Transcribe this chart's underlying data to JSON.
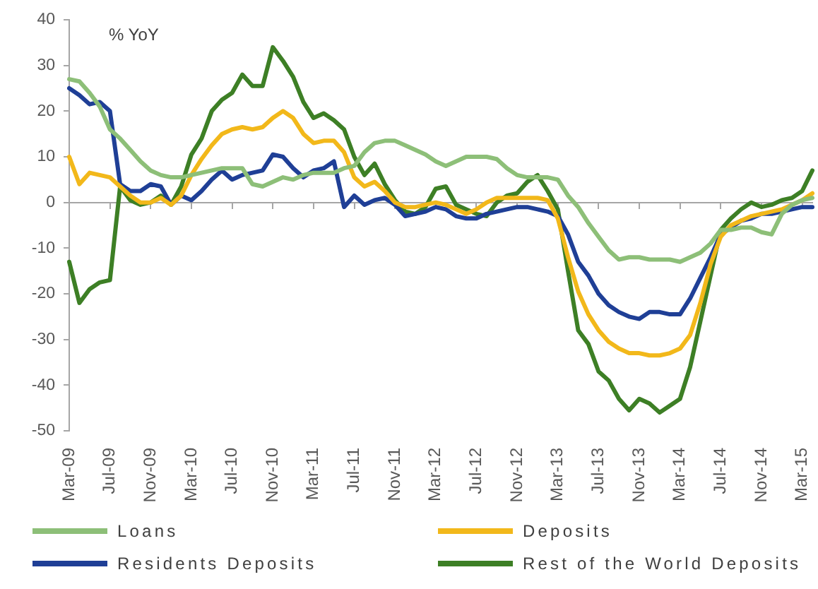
{
  "chart_data": {
    "type": "line",
    "ylabel": "% YoY",
    "categories": [
      "Mar-09",
      null,
      null,
      null,
      "Jul-09",
      null,
      null,
      null,
      "Nov-09",
      null,
      null,
      null,
      "Mar-10",
      null,
      null,
      null,
      "Jul-10",
      null,
      null,
      null,
      "Nov-10",
      null,
      null,
      null,
      "Mar-11",
      null,
      null,
      null,
      "Jul-11",
      null,
      null,
      null,
      "Nov-11",
      null,
      null,
      null,
      "Mar-12",
      null,
      null,
      null,
      "Jul-12",
      null,
      null,
      null,
      "Nov-12",
      null,
      null,
      null,
      "Mar-13",
      null,
      null,
      null,
      "Jul-13",
      null,
      null,
      null,
      "Nov-13",
      null,
      null,
      null,
      "Mar-14",
      null,
      null,
      null,
      "Jul-14",
      null,
      null,
      null,
      "Nov-14",
      null,
      null,
      null,
      "Mar-15",
      null
    ],
    "series": [
      {
        "name": "Loans",
        "color": "#8dbf78",
        "values": [
          27,
          26.5,
          24,
          21,
          16,
          14,
          11.5,
          9,
          7,
          6,
          5.5,
          5.5,
          6,
          6.5,
          7,
          7.5,
          7.5,
          7.5,
          4,
          3.5,
          4.5,
          5.5,
          5,
          6,
          6.5,
          6.5,
          6.5,
          7.5,
          8,
          11,
          13,
          13.5,
          13.5,
          12.5,
          11.5,
          10.5,
          9,
          8,
          9,
          10,
          10,
          10,
          9.5,
          7.5,
          6,
          5.5,
          5.5,
          5.5,
          5,
          1.5,
          -1,
          -4.5,
          -7.5,
          -10.5,
          -12.5,
          -12,
          -12,
          -12.5,
          -12.5,
          -12.5,
          -13,
          -12,
          -11,
          -9,
          -6,
          -6,
          -5.5,
          -5.5,
          -6.5,
          -7,
          -2.5,
          -0.5,
          0.5,
          1
        ]
      },
      {
        "name": "Deposits",
        "color": "#f2b81a",
        "values": [
          10,
          4,
          6.5,
          6,
          5.5,
          3.5,
          1.5,
          0,
          0,
          1,
          -0.5,
          1.5,
          6,
          9.5,
          12.5,
          15,
          16,
          16.5,
          16,
          16.5,
          18.5,
          20,
          18.5,
          15,
          13,
          13.5,
          13.5,
          11,
          5.5,
          3.5,
          4.5,
          2.5,
          0,
          -1,
          -1,
          -0.5,
          0,
          -0.5,
          -1.5,
          -2.5,
          -1.5,
          0,
          1,
          1,
          1,
          1,
          1,
          0.5,
          -3.5,
          -12,
          -19.5,
          -24.5,
          -28,
          -30.5,
          -32,
          -33,
          -33,
          -33.5,
          -33.5,
          -33,
          -32,
          -29,
          -22,
          -13.5,
          -7.5,
          -5,
          -4,
          -3,
          -2.5,
          -2,
          -1.5,
          -0.5,
          0.5,
          2
        ]
      },
      {
        "name": "Residents Deposits",
        "color": "#1f3f96",
        "values": [
          25,
          23.5,
          21.5,
          22,
          20,
          4,
          2.5,
          2.5,
          4,
          3.5,
          -0.5,
          1.5,
          0.5,
          2.5,
          5,
          7,
          5,
          6,
          6.5,
          7,
          10.5,
          10,
          7.5,
          5.5,
          7,
          7.5,
          9,
          -1,
          1.5,
          -0.5,
          0.5,
          1,
          -0.5,
          -3,
          -2.5,
          -2,
          -1,
          -1.5,
          -3,
          -3.5,
          -3.5,
          -2.5,
          -2,
          -1.5,
          -1,
          -1,
          -1.5,
          -2,
          -3,
          -7,
          -13,
          -16,
          -20,
          -22.5,
          -24,
          -25,
          -25.5,
          -24,
          -24,
          -24.5,
          -24.5,
          -21,
          -16.5,
          -12,
          -7,
          -5.5,
          -4,
          -3.5,
          -2.5,
          -2.5,
          -2,
          -1.5,
          -1,
          -1
        ]
      },
      {
        "name": "Rest of the World Deposits",
        "color": "#3d7f25",
        "values": [
          -13,
          -22,
          -19,
          -17.5,
          -17,
          3.5,
          0.5,
          -0.5,
          0,
          1.5,
          -0.5,
          3.5,
          10.5,
          14,
          20,
          22.5,
          24,
          28,
          25.5,
          25.5,
          34,
          31,
          27.5,
          22,
          18.5,
          19.5,
          18,
          16,
          10,
          6,
          8.5,
          4,
          0.5,
          -2,
          -2.5,
          -1,
          3,
          3.5,
          -0.5,
          -1.5,
          -2.5,
          -3,
          0,
          1.5,
          2,
          4.5,
          6,
          2.5,
          -1.5,
          -15,
          -28,
          -31,
          -37,
          -39,
          -43,
          -45.5,
          -43,
          -44,
          -46,
          -44.5,
          -43,
          -36,
          -26,
          -16,
          -6,
          -3.5,
          -1.5,
          0,
          -1,
          -0.5,
          0.5,
          1,
          2.5,
          7
        ]
      }
    ],
    "ylim": [
      -50,
      40
    ],
    "yticks": [
      -50,
      -40,
      -30,
      -20,
      -10,
      0,
      10,
      20,
      30,
      40
    ],
    "legend": "bottom",
    "marker": "none",
    "line_style": "solid"
  }
}
